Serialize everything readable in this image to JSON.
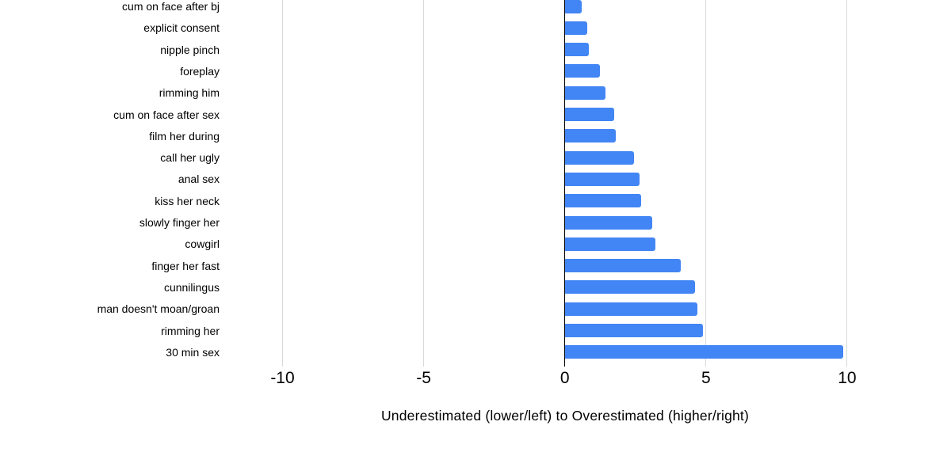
{
  "chart_data": {
    "type": "bar",
    "orientation": "horizontal",
    "title": "",
    "xlabel": "Underestimated (lower/left) to Overestimated (higher/right)",
    "ylabel": "",
    "categories": [
      "cum on face after bj",
      "explicit consent",
      "nipple pinch",
      "foreplay",
      "rimming him",
      "cum on face after sex",
      "film her during",
      "call her ugly",
      "anal sex",
      "kiss her neck",
      "slowly finger her",
      "cowgirl",
      "finger her fast",
      "cunnilingus",
      "man doesn't moan/groan",
      "rimming her",
      "30 min sex"
    ],
    "values": [
      0.6,
      0.8,
      0.85,
      1.25,
      1.45,
      1.75,
      1.8,
      2.45,
      2.65,
      2.7,
      3.1,
      3.2,
      4.1,
      4.6,
      4.7,
      4.9,
      9.85
    ],
    "x_ticks": [
      -10,
      -5,
      0,
      5,
      10
    ],
    "xlim": [
      -12.2,
      13.7
    ],
    "grid": true,
    "legend": false,
    "bar_color": "#4285f4",
    "gridline_color": "#d9d9d9",
    "zero_axis_color": "#000000",
    "text_color": "#000000",
    "background_color": "#ffffff"
  }
}
